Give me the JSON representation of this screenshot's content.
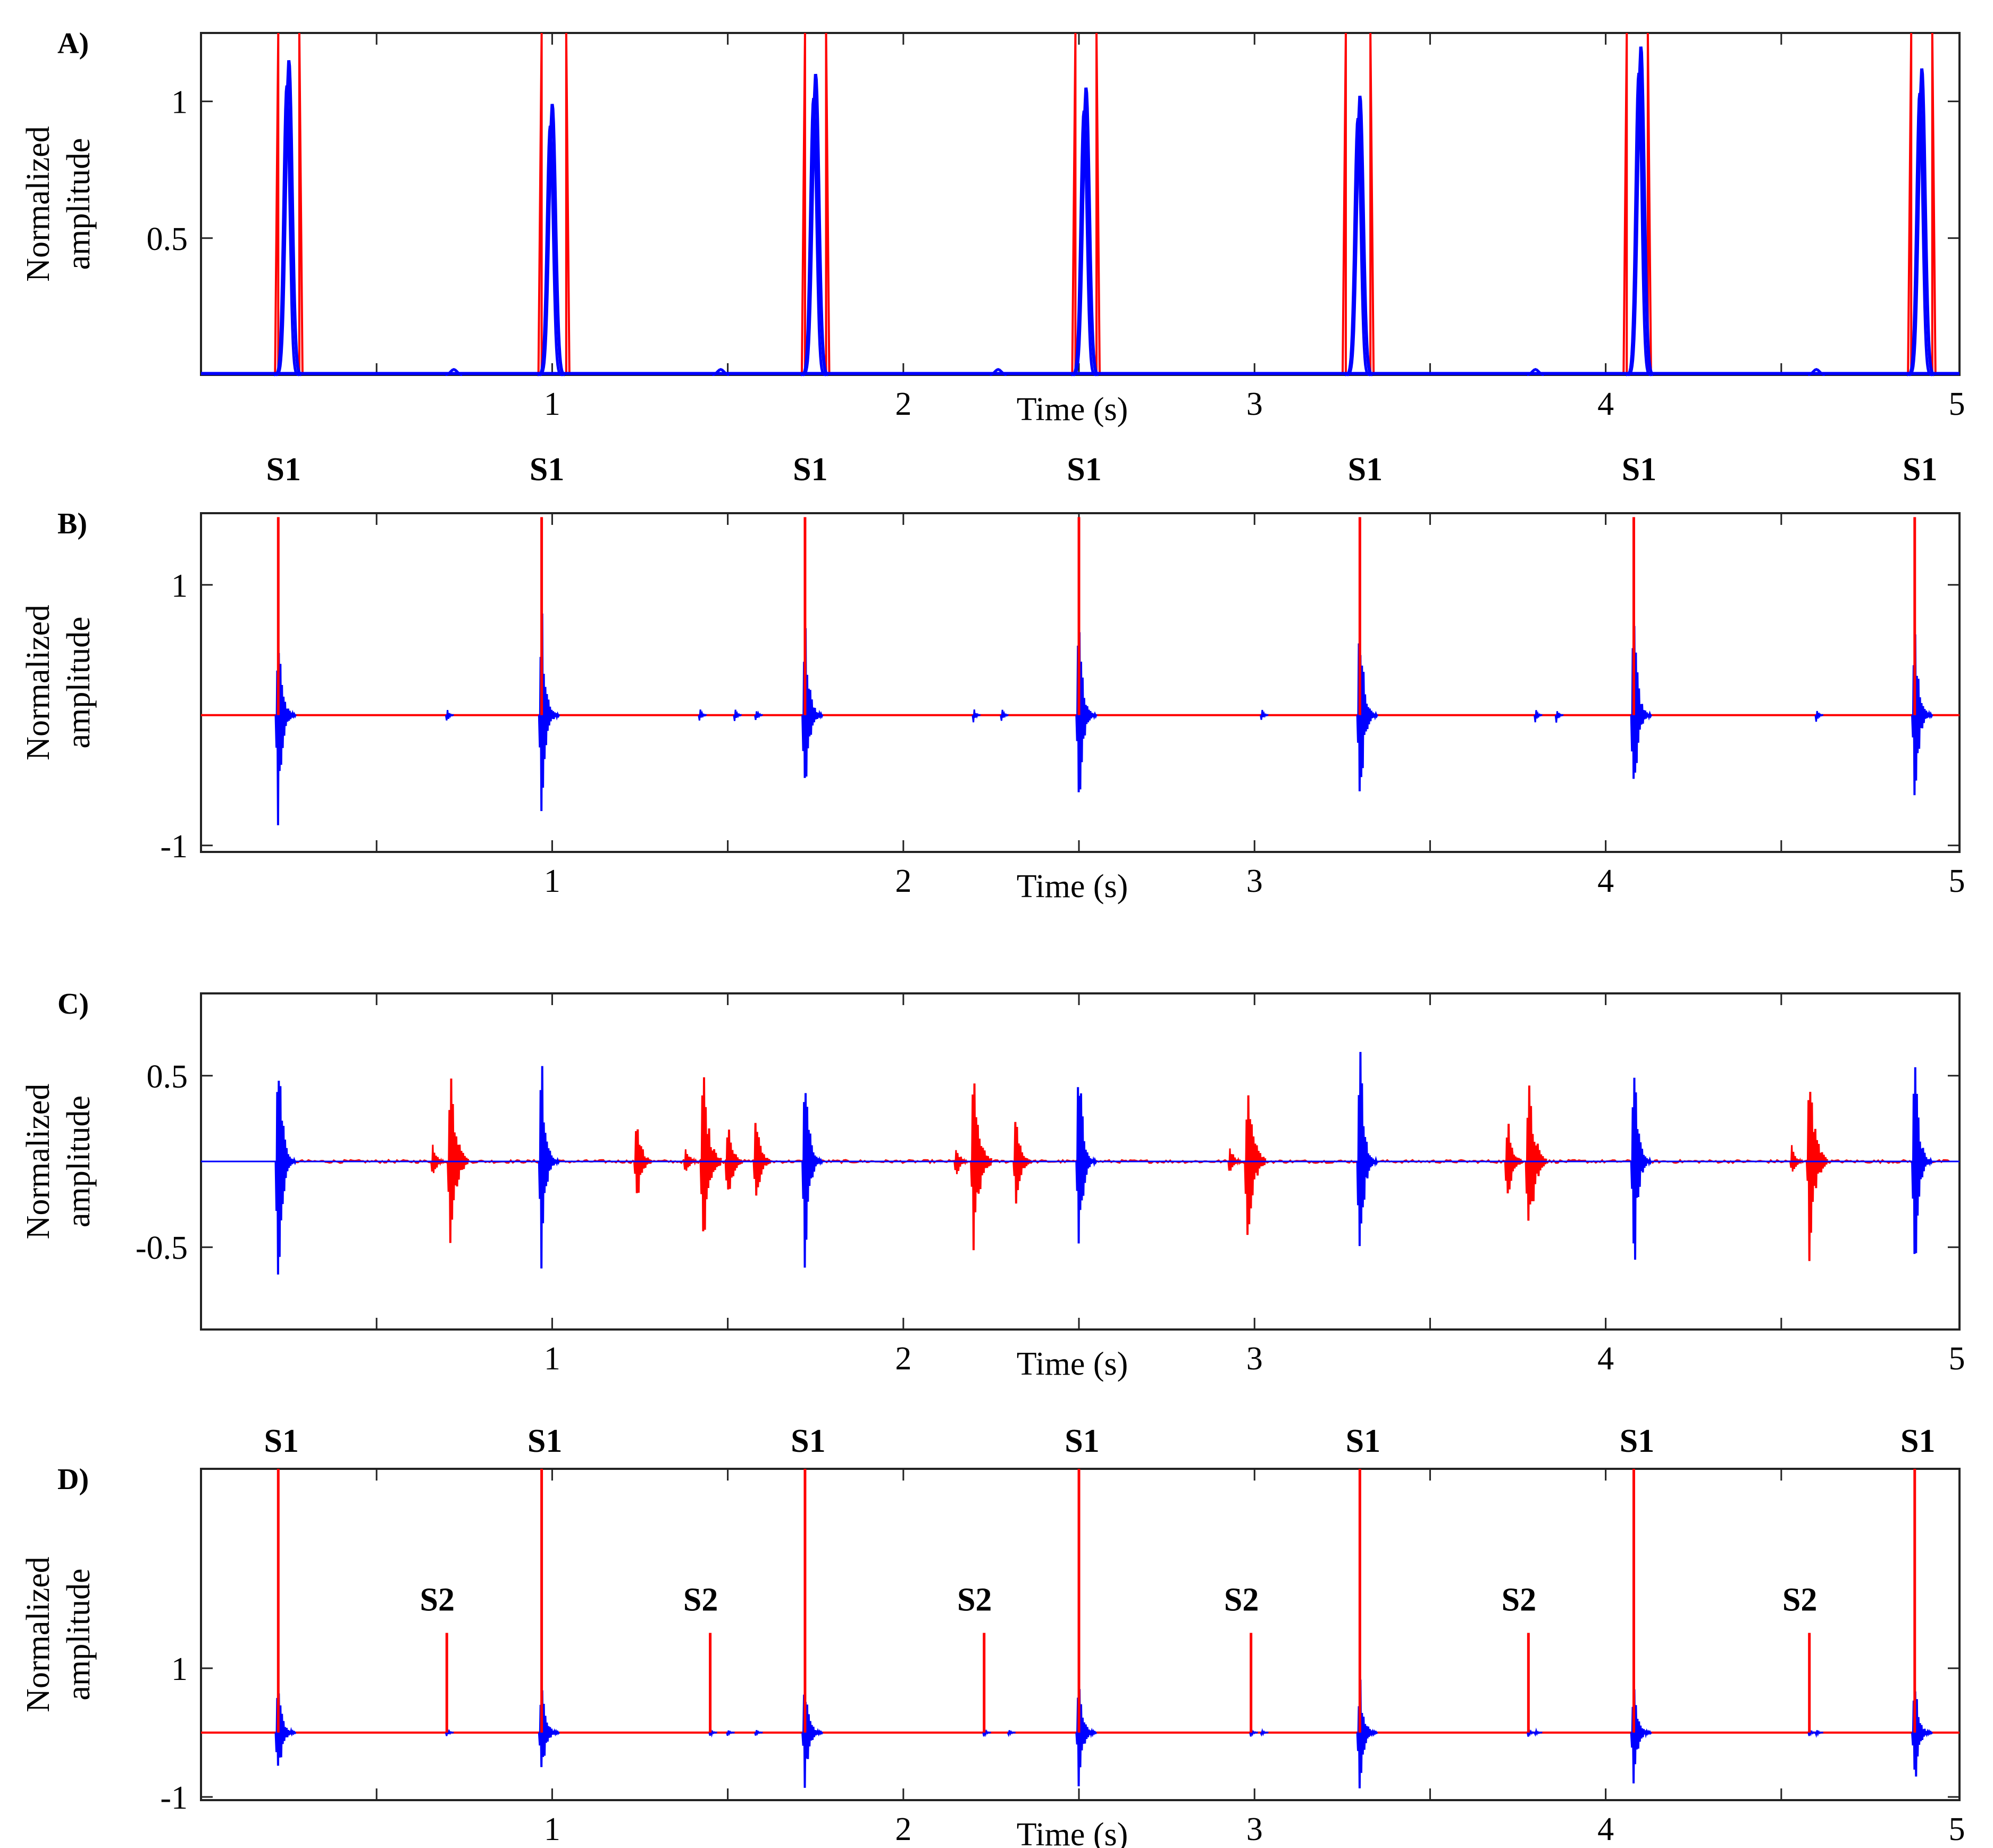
{
  "chart_data": [
    {
      "id": "A",
      "type": "line",
      "panel_label": "A)",
      "xlabel": "Time (s)",
      "ylabel": [
        "Normalized",
        "amplitude"
      ],
      "xlim": [
        0,
        5
      ],
      "ylim": [
        0,
        1.25
      ],
      "xticks": [
        1,
        2,
        3,
        4,
        5
      ],
      "yticks": [
        {
          "v": 0.5,
          "label": "0.5"
        },
        {
          "v": 1,
          "label": "1"
        }
      ],
      "s1_times": [
        0.25,
        1.0,
        1.75,
        2.52,
        3.3,
        4.1,
        4.9
      ],
      "s1_heights": [
        1.15,
        0.99,
        1.1,
        1.05,
        1.02,
        1.2,
        1.12
      ],
      "red_window_edges": [
        [
          0.22,
          0.28
        ],
        [
          0.97,
          1.04
        ],
        [
          1.72,
          1.78
        ],
        [
          2.49,
          2.55
        ],
        [
          3.26,
          3.33
        ],
        [
          4.06,
          4.12
        ],
        [
          4.87,
          4.93
        ]
      ],
      "colors": {
        "envelope": "#0000ff",
        "window": "#ff0000"
      }
    },
    {
      "id": "B",
      "type": "line",
      "panel_label": "B)",
      "xlabel": "Time (s)",
      "ylabel": [
        "Normalized",
        "amplitude"
      ],
      "xlim": [
        0,
        5
      ],
      "ylim": [
        -1.05,
        1.55
      ],
      "xticks": [
        1,
        2,
        3,
        4,
        5
      ],
      "yticks": [
        {
          "v": -1,
          "label": "-1"
        },
        {
          "v": 1,
          "label": "1"
        }
      ],
      "s1_times": [
        0.22,
        0.97,
        1.72,
        2.5,
        3.3,
        4.08,
        4.88
      ],
      "s1_marker_height": 1.52,
      "annotations": [
        "S1",
        "S1",
        "S1",
        "S1",
        "S1",
        "S1",
        "S1"
      ],
      "colors": {
        "signal": "#0000ff",
        "marker": "#ff0000"
      }
    },
    {
      "id": "C",
      "type": "line",
      "panel_label": "C)",
      "xlabel": "Time (s)",
      "ylabel": [
        "Normalized",
        "amplitude"
      ],
      "xlim": [
        0,
        5
      ],
      "ylim": [
        -0.98,
        0.98
      ],
      "xticks": [
        1,
        2,
        3,
        4,
        5
      ],
      "yticks": [
        {
          "v": -0.5,
          "label": "-0.5"
        },
        {
          "v": 0.5,
          "label": "0.5"
        }
      ],
      "s1_times": [
        0.22,
        0.97,
        1.72,
        2.5,
        3.3,
        4.08,
        4.88
      ],
      "s1_amplitudes": [
        0.95,
        0.75,
        0.8,
        0.75,
        0.88,
        0.85,
        0.85
      ],
      "s2_times": [
        0.71,
        1.43,
        2.2,
        2.98,
        3.78,
        4.58
      ],
      "s2_amplitudes": [
        0.6,
        0.6,
        0.6,
        0.58,
        0.62,
        0.6
      ],
      "colors": {
        "s1_signal": "#0000ff",
        "s2_signal": "#ff0000"
      }
    },
    {
      "id": "D",
      "type": "line",
      "panel_label": "D)",
      "xlabel": "Time (s)",
      "ylabel": [
        "Normalized",
        "amplitude"
      ],
      "xlim": [
        0,
        5
      ],
      "ylim": [
        -1.05,
        4.1
      ],
      "xticks": [
        1,
        2,
        3,
        4,
        5
      ],
      "yticks": [
        {
          "v": -1,
          "label": "-1"
        },
        {
          "v": 1,
          "label": "1"
        }
      ],
      "s1_times": [
        0.22,
        0.97,
        1.72,
        2.5,
        3.3,
        4.08,
        4.88
      ],
      "s1_marker_height": 4.05,
      "s2_times": [
        0.7,
        1.45,
        2.23,
        2.99,
        3.78,
        4.58
      ],
      "s2_marker_height": 1.55,
      "annotations": {
        "s1": "S1",
        "s2": "S2"
      },
      "colors": {
        "signal": "#0000ff",
        "marker": "#ff0000"
      }
    }
  ]
}
